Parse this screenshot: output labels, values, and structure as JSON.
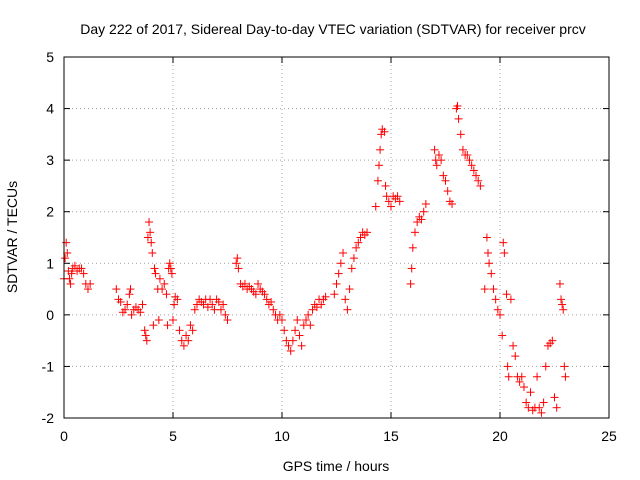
{
  "chart_data": {
    "type": "scatter",
    "title": "Day 222 of 2017, Sidereal Day-to-day VTEC variation (SDTVAR) for receiver prcv",
    "xlabel": "GPS time / hours",
    "ylabel": "SDTVAR / TECUs",
    "xlim": [
      0,
      25
    ],
    "ylim": [
      -2,
      5
    ],
    "xticks": [
      "0",
      "5",
      "10",
      "15",
      "20",
      "25"
    ],
    "yticks": [
      "-2",
      "-1",
      "0",
      "1",
      "2",
      "3",
      "4",
      "5"
    ],
    "grid": true,
    "marker": "plus",
    "color": "#ff0000",
    "series": [
      {
        "name": "SDTVAR",
        "points": [
          [
            0.0,
            0.7
          ],
          [
            0.05,
            1.1
          ],
          [
            0.1,
            1.4
          ],
          [
            0.15,
            1.2
          ],
          [
            0.2,
            0.85
          ],
          [
            0.25,
            0.7
          ],
          [
            0.3,
            0.6
          ],
          [
            0.35,
            0.8
          ],
          [
            0.4,
            0.9
          ],
          [
            0.5,
            0.95
          ],
          [
            0.6,
            0.85
          ],
          [
            0.7,
            0.9
          ],
          [
            0.8,
            0.9
          ],
          [
            0.9,
            0.8
          ],
          [
            1.0,
            0.6
          ],
          [
            1.1,
            0.5
          ],
          [
            1.2,
            0.6
          ],
          [
            2.4,
            0.5
          ],
          [
            2.5,
            0.3
          ],
          [
            2.6,
            0.25
          ],
          [
            2.7,
            0.05
          ],
          [
            2.8,
            0.1
          ],
          [
            2.9,
            0.2
          ],
          [
            3.0,
            0.4
          ],
          [
            3.05,
            0.5
          ],
          [
            3.1,
            0.0
          ],
          [
            3.2,
            0.1
          ],
          [
            3.3,
            0.15
          ],
          [
            3.4,
            0.1
          ],
          [
            3.5,
            0.05
          ],
          [
            3.6,
            0.2
          ],
          [
            3.7,
            -0.3
          ],
          [
            3.75,
            -0.4
          ],
          [
            3.8,
            -0.5
          ],
          [
            3.85,
            1.5
          ],
          [
            3.9,
            1.8
          ],
          [
            3.95,
            1.6
          ],
          [
            4.0,
            1.4
          ],
          [
            4.05,
            1.2
          ],
          [
            4.1,
            -0.2
          ],
          [
            4.15,
            0.9
          ],
          [
            4.2,
            0.8
          ],
          [
            4.3,
            0.5
          ],
          [
            4.35,
            -0.1
          ],
          [
            4.4,
            0.7
          ],
          [
            4.5,
            0.5
          ],
          [
            4.6,
            0.6
          ],
          [
            4.7,
            0.4
          ],
          [
            4.75,
            -0.2
          ],
          [
            4.8,
            0.9
          ],
          [
            4.85,
            1.0
          ],
          [
            4.9,
            0.9
          ],
          [
            4.95,
            0.8
          ],
          [
            5.0,
            -0.1
          ],
          [
            5.05,
            0.2
          ],
          [
            5.1,
            0.35
          ],
          [
            5.2,
            0.3
          ],
          [
            5.3,
            -0.3
          ],
          [
            5.4,
            -0.5
          ],
          [
            5.5,
            -0.6
          ],
          [
            5.6,
            -0.4
          ],
          [
            5.7,
            -0.5
          ],
          [
            5.8,
            -0.2
          ],
          [
            5.9,
            -0.3
          ],
          [
            6.0,
            0.1
          ],
          [
            6.1,
            0.2
          ],
          [
            6.2,
            0.3
          ],
          [
            6.3,
            0.25
          ],
          [
            6.4,
            0.2
          ],
          [
            6.5,
            0.3
          ],
          [
            6.6,
            0.15
          ],
          [
            6.7,
            0.3
          ],
          [
            6.8,
            0.2
          ],
          [
            6.9,
            0.1
          ],
          [
            7.0,
            0.3
          ],
          [
            7.1,
            0.25
          ],
          [
            7.2,
            0.1
          ],
          [
            7.3,
            0.2
          ],
          [
            7.4,
            0.0
          ],
          [
            7.5,
            -0.1
          ],
          [
            7.9,
            1.0
          ],
          [
            7.95,
            1.1
          ],
          [
            8.0,
            0.9
          ],
          [
            8.1,
            0.6
          ],
          [
            8.2,
            0.55
          ],
          [
            8.3,
            0.6
          ],
          [
            8.4,
            0.5
          ],
          [
            8.5,
            0.55
          ],
          [
            8.6,
            0.5
          ],
          [
            8.7,
            0.45
          ],
          [
            8.8,
            0.4
          ],
          [
            8.9,
            0.6
          ],
          [
            9.0,
            0.5
          ],
          [
            9.1,
            0.45
          ],
          [
            9.2,
            0.4
          ],
          [
            9.3,
            0.3
          ],
          [
            9.4,
            0.2
          ],
          [
            9.5,
            0.25
          ],
          [
            9.6,
            0.1
          ],
          [
            9.7,
            0.0
          ],
          [
            9.8,
            -0.1
          ],
          [
            9.9,
            0.0
          ],
          [
            10.0,
            -0.1
          ],
          [
            10.1,
            -0.3
          ],
          [
            10.2,
            -0.5
          ],
          [
            10.3,
            -0.6
          ],
          [
            10.4,
            -0.7
          ],
          [
            10.5,
            -0.5
          ],
          [
            10.6,
            -0.3
          ],
          [
            10.7,
            -0.1
          ],
          [
            10.8,
            -0.4
          ],
          [
            10.9,
            -0.6
          ],
          [
            11.0,
            -0.2
          ],
          [
            11.1,
            -0.1
          ],
          [
            11.2,
            0.0
          ],
          [
            11.3,
            -0.2
          ],
          [
            11.4,
            0.1
          ],
          [
            11.5,
            0.2
          ],
          [
            11.6,
            0.15
          ],
          [
            11.7,
            0.3
          ],
          [
            11.8,
            0.2
          ],
          [
            11.9,
            0.3
          ],
          [
            12.0,
            0.35
          ],
          [
            12.4,
            0.4
          ],
          [
            12.5,
            0.6
          ],
          [
            12.6,
            0.8
          ],
          [
            12.7,
            1.0
          ],
          [
            12.8,
            1.2
          ],
          [
            12.9,
            0.3
          ],
          [
            13.0,
            0.1
          ],
          [
            13.1,
            0.5
          ],
          [
            13.2,
            0.9
          ],
          [
            13.3,
            1.1
          ],
          [
            13.4,
            1.3
          ],
          [
            13.5,
            1.4
          ],
          [
            13.6,
            1.5
          ],
          [
            13.7,
            1.6
          ],
          [
            13.8,
            1.55
          ],
          [
            13.9,
            1.6
          ],
          [
            14.3,
            2.1
          ],
          [
            14.4,
            2.6
          ],
          [
            14.45,
            2.9
          ],
          [
            14.5,
            3.2
          ],
          [
            14.55,
            3.5
          ],
          [
            14.6,
            3.6
          ],
          [
            14.7,
            3.55
          ],
          [
            14.75,
            2.5
          ],
          [
            14.8,
            2.3
          ],
          [
            14.9,
            2.2
          ],
          [
            15.0,
            2.1
          ],
          [
            15.1,
            2.3
          ],
          [
            15.2,
            2.25
          ],
          [
            15.3,
            2.3
          ],
          [
            15.4,
            2.2
          ],
          [
            15.9,
            0.6
          ],
          [
            15.95,
            0.9
          ],
          [
            16.0,
            1.3
          ],
          [
            16.1,
            1.6
          ],
          [
            16.2,
            1.8
          ],
          [
            16.3,
            1.9
          ],
          [
            16.4,
            1.85
          ],
          [
            16.5,
            2.0
          ],
          [
            16.6,
            2.15
          ],
          [
            17.0,
            3.2
          ],
          [
            17.05,
            3.0
          ],
          [
            17.1,
            2.9
          ],
          [
            17.2,
            3.1
          ],
          [
            17.3,
            3.0
          ],
          [
            17.4,
            2.7
          ],
          [
            17.5,
            2.6
          ],
          [
            17.6,
            2.4
          ],
          [
            17.7,
            2.2
          ],
          [
            17.8,
            2.15
          ],
          [
            18.0,
            4.0
          ],
          [
            18.05,
            4.05
          ],
          [
            18.1,
            3.8
          ],
          [
            18.2,
            3.5
          ],
          [
            18.3,
            3.2
          ],
          [
            18.4,
            3.1
          ],
          [
            18.5,
            3.1
          ],
          [
            18.6,
            3.0
          ],
          [
            18.7,
            2.9
          ],
          [
            18.8,
            2.8
          ],
          [
            18.9,
            2.7
          ],
          [
            19.0,
            2.6
          ],
          [
            19.1,
            2.5
          ],
          [
            19.3,
            0.5
          ],
          [
            19.4,
            1.5
          ],
          [
            19.45,
            1.2
          ],
          [
            19.5,
            1.0
          ],
          [
            19.6,
            0.8
          ],
          [
            19.7,
            0.5
          ],
          [
            19.8,
            0.3
          ],
          [
            19.9,
            0.1
          ],
          [
            20.0,
            0.0
          ],
          [
            20.1,
            -0.4
          ],
          [
            20.15,
            1.4
          ],
          [
            20.2,
            1.2
          ],
          [
            20.3,
            0.4
          ],
          [
            20.35,
            -1.0
          ],
          [
            20.4,
            -1.2
          ],
          [
            20.5,
            0.3
          ],
          [
            20.6,
            -0.6
          ],
          [
            20.7,
            -0.8
          ],
          [
            20.8,
            -1.2
          ],
          [
            20.9,
            -1.3
          ],
          [
            21.0,
            -1.2
          ],
          [
            21.1,
            -1.4
          ],
          [
            21.2,
            -1.7
          ],
          [
            21.3,
            -1.8
          ],
          [
            21.4,
            -1.5
          ],
          [
            21.5,
            -1.85
          ],
          [
            21.6,
            -1.8
          ],
          [
            21.7,
            -1.2
          ],
          [
            21.8,
            -1.8
          ],
          [
            21.9,
            -1.9
          ],
          [
            22.0,
            -1.7
          ],
          [
            22.1,
            -1.0
          ],
          [
            22.2,
            -0.6
          ],
          [
            22.3,
            -0.55
          ],
          [
            22.4,
            -0.5
          ],
          [
            22.5,
            -1.6
          ],
          [
            22.6,
            -1.8
          ],
          [
            22.75,
            0.6
          ],
          [
            22.8,
            0.3
          ],
          [
            22.85,
            0.2
          ],
          [
            22.9,
            0.1
          ],
          [
            22.95,
            -1.0
          ],
          [
            23.0,
            -1.2
          ]
        ]
      }
    ]
  }
}
